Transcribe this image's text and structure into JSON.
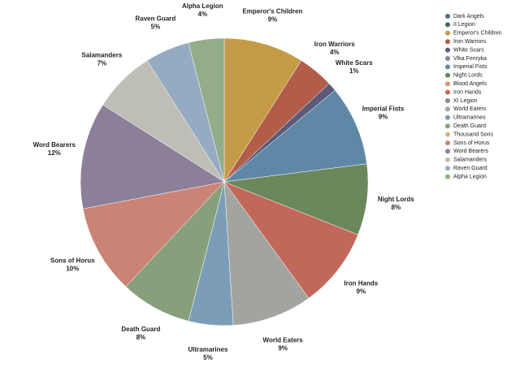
{
  "chart_data": {
    "type": "pie",
    "categories": [
      "Dark Angels",
      "II Legion",
      "Emperor's Children",
      "Iron Warriors",
      "White Scars",
      "Vlka Fenryka",
      "Imperial Fists",
      "Night Lords",
      "Blood Angels",
      "Iron Hands",
      "XI Legion",
      "World Eaters",
      "Ultramarines",
      "Death Guard",
      "Thousand Sons",
      "Sons of Horus",
      "Word Bearers",
      "Salamanders",
      "Raven Guard",
      "Alpha Legion"
    ],
    "values": [
      0,
      0,
      9,
      4,
      1,
      0,
      9,
      8,
      0,
      9,
      0,
      9,
      5,
      8,
      0,
      10,
      12,
      7,
      5,
      4
    ],
    "value_labels": [
      null,
      null,
      "9%",
      "4%",
      "1%",
      null,
      "9%",
      "8%",
      null,
      "9%",
      null,
      "9%",
      "5%",
      "8%",
      null,
      "10%",
      "12%",
      "7%",
      "5%",
      "4%"
    ],
    "colors": [
      "#4b6f8c",
      "#3f6a6a",
      "#c49b47",
      "#b25c4a",
      "#5c5a78",
      "#7b8b9b",
      "#5f88a7",
      "#6b875c",
      "#d6966c",
      "#c2685b",
      "#8a8a8a",
      "#a2a49f",
      "#7b9db8",
      "#87a07b",
      "#d9b37c",
      "#ca8374",
      "#8b7f99",
      "#bebeb6",
      "#95abc1",
      "#93ad8b"
    ],
    "legend": "right"
  }
}
